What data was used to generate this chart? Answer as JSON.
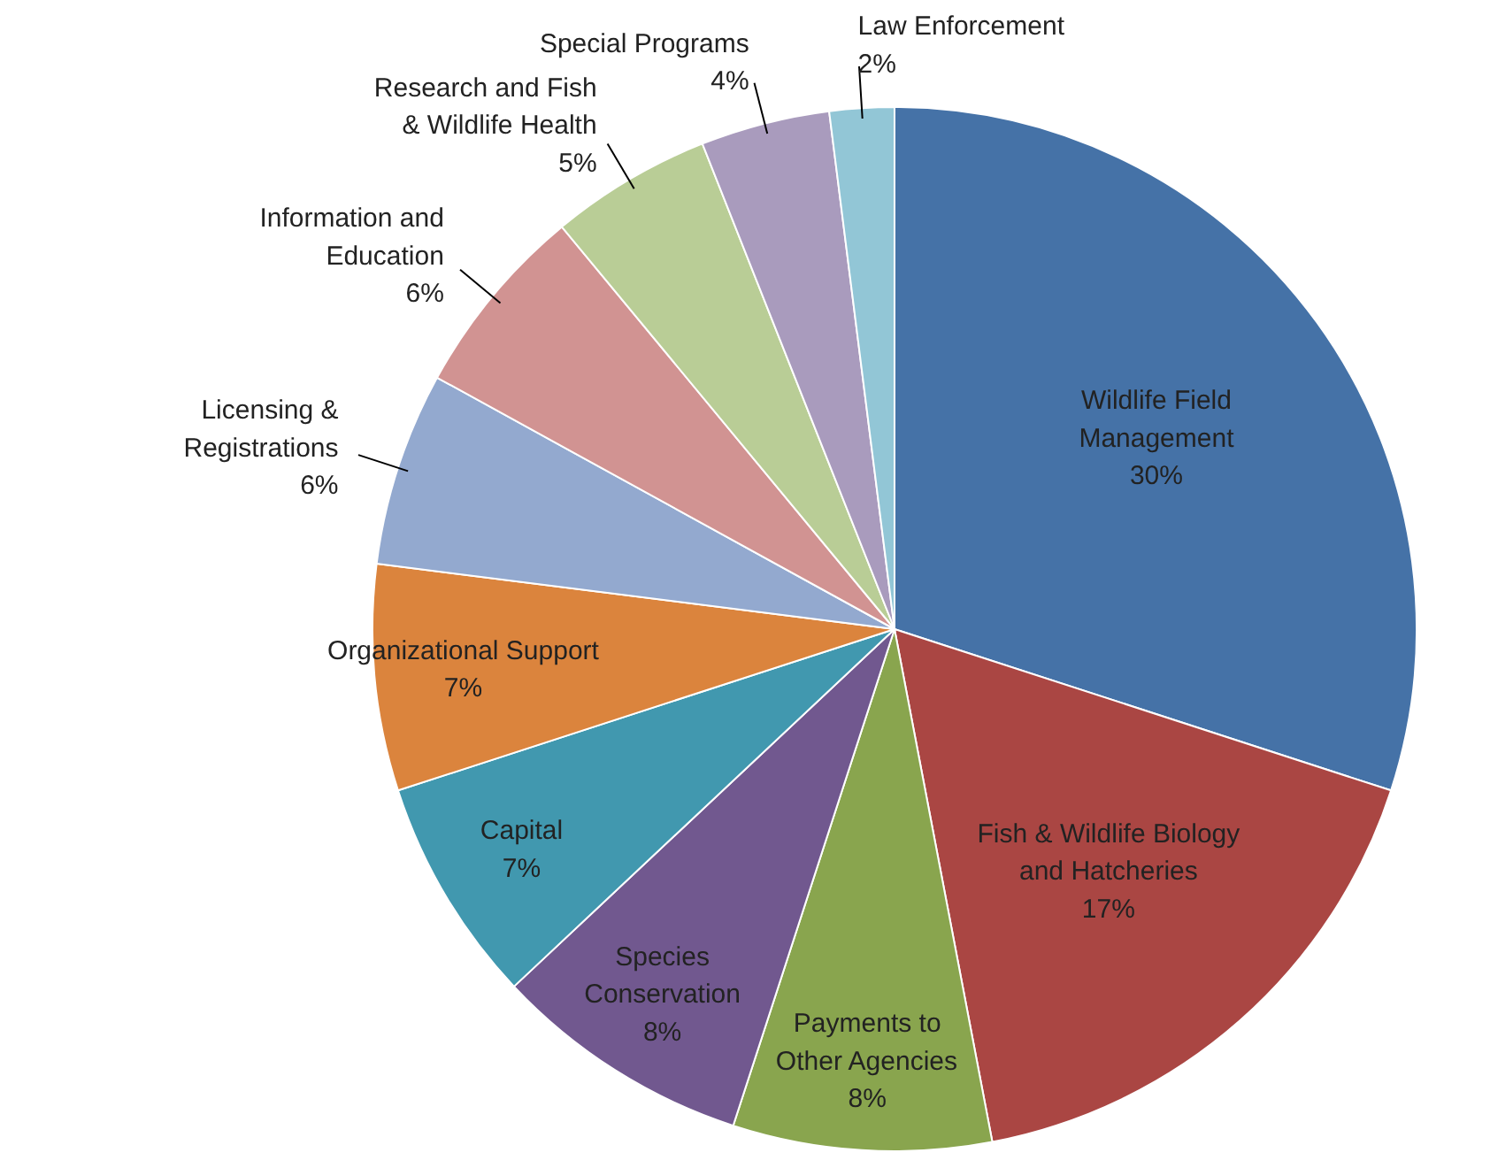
{
  "chart_data": {
    "type": "pie",
    "categories": [
      "Wildlife Field\nManagement",
      "Fish & Wildlife Biology\nand Hatcheries",
      "Payments to\nOther Agencies",
      "Species\nConservation",
      "Capital",
      "Organizational Support",
      "Licensing &\nRegistrations",
      "Information and\nEducation",
      "Research and Fish\n& Wildlife Health",
      "Special Programs",
      "Law Enforcement"
    ],
    "values": [
      30,
      17,
      8,
      8,
      7,
      7,
      6,
      6,
      5,
      4,
      2
    ],
    "value_labels": [
      "30%",
      "17%",
      "8%",
      "8%",
      "7%",
      "7%",
      "6%",
      "6%",
      "5%",
      "4%",
      "2%"
    ],
    "colors": [
      "#4572a7",
      "#aa4643",
      "#89a54e",
      "#71588f",
      "#4198af",
      "#db843d",
      "#93a9cf",
      "#d19392",
      "#b9cd96",
      "#a99bbd",
      "#92c6d6"
    ]
  }
}
